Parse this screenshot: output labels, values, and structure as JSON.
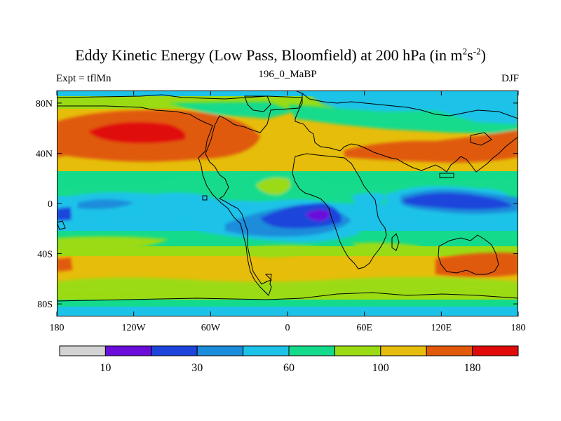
{
  "title": {
    "main": "Eddy Kinetic Energy (Low Pass, Bloomfield) at 200 hPa (in m",
    "sup1": "2",
    "mid": "s",
    "sup2": "-2",
    "end": ")"
  },
  "left_label": "Expt = tflMn",
  "center_label": "196_0_MaBP",
  "right_label": "DJF",
  "map": {
    "projection": "cylindrical-equidistant",
    "lon_range": [
      -180,
      180
    ],
    "lat_range": [
      -90,
      90
    ],
    "x_ticks": [
      "180",
      "120W",
      "60W",
      "0",
      "60E",
      "120E",
      "180"
    ],
    "y_ticks": [
      "80N",
      "40N",
      "0",
      "40S",
      "80S"
    ],
    "x_tick_values": [
      -180,
      -120,
      -60,
      0,
      60,
      120,
      180
    ],
    "y_tick_values": [
      80,
      40,
      0,
      -40,
      -80
    ]
  },
  "colorbar": {
    "colors": [
      "#d3d3d3",
      "#6a0ddb",
      "#1d45db",
      "#1a8cdb",
      "#1dc2e8",
      "#14db8c",
      "#9bdb14",
      "#e6bd0a",
      "#e05a0a",
      "#e00a0a"
    ],
    "labels": [
      "10",
      "30",
      "60",
      "100",
      "180"
    ],
    "label_positions": [
      1,
      3,
      5,
      7,
      9
    ]
  }
}
